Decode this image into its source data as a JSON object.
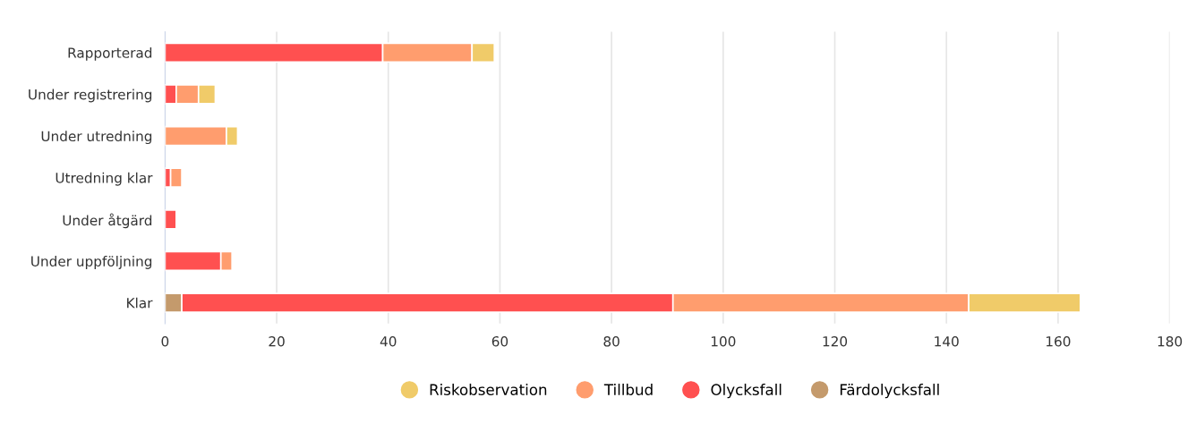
{
  "chart_data": {
    "type": "bar",
    "orientation": "horizontal",
    "stacked": true,
    "categories": [
      "Rapporterad",
      "Under registrering",
      "Under utredning",
      "Utredning klar",
      "Under åtgärd",
      "Under uppföljning",
      "Klar"
    ],
    "series": [
      {
        "name": "Färdolycksfall",
        "color": "#c49a6c",
        "values": [
          0,
          0,
          0,
          0,
          0,
          0,
          3
        ]
      },
      {
        "name": "Olycksfall",
        "color": "#ff5050",
        "values": [
          39,
          2,
          0,
          1,
          2,
          10,
          88
        ]
      },
      {
        "name": "Tillbud",
        "color": "#ff9d6e",
        "values": [
          16,
          4,
          11,
          2,
          0,
          2,
          53
        ]
      },
      {
        "name": "Riskobservation",
        "color": "#f0cb69",
        "values": [
          4,
          3,
          2,
          0,
          0,
          0,
          20
        ]
      }
    ],
    "xlim": [
      0,
      180
    ],
    "xticks": [
      0,
      20,
      40,
      60,
      80,
      100,
      120,
      140,
      160,
      180
    ],
    "grid": "x",
    "legend": "bottom"
  }
}
